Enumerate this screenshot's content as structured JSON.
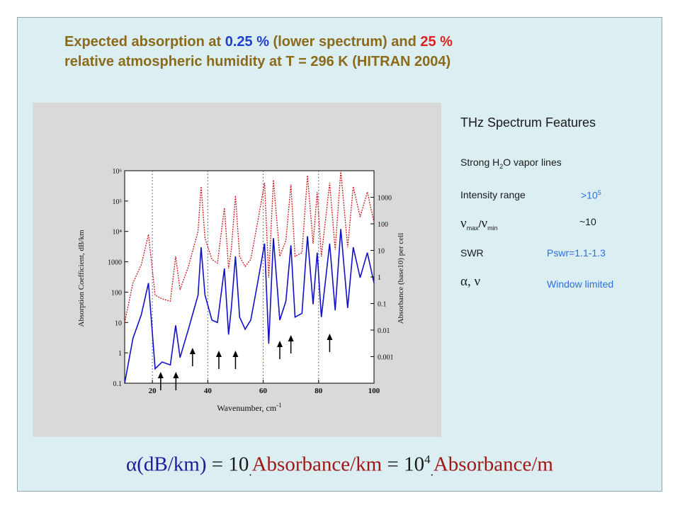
{
  "title": {
    "part1": "Expected absorption at ",
    "pct_low": "0.25 %",
    "part2": " (lower spectrum) and ",
    "pct_high": "25 %",
    "line2": "relative atmospheric humidity at T = 296 K (HITRAN 2004)"
  },
  "features": {
    "heading": "THz Spectrum Features",
    "strong_pre": "Strong H",
    "strong_sub": "2",
    "strong_post": "O vapor lines",
    "intensity_label": "Intensity range",
    "intensity_value": ">10",
    "intensity_exp": "5",
    "nu_max_sub": "max",
    "nu_min_sub": "min",
    "nu_value": "~10",
    "swr_label": "SWR",
    "swr_value": "Pswr=1.1-1.3",
    "alpha_nu": "α, ν",
    "alpha_value": "Window limited"
  },
  "formula": {
    "alpha": "α",
    "unit": "(dB/km)",
    "eq1": " = 10",
    "term1": "Absorbance/km",
    "eq2": " = 10",
    "exp": "4",
    "term2": "Absorbance/m"
  },
  "chart_data": {
    "type": "line",
    "xlabel": "Wavenumber, cm",
    "xlabel_sup": "-1",
    "ylabel_left": "Absorption Coefficient, dB/km",
    "ylabel_right": "Absorbance (base10) per cell",
    "xlim": [
      10,
      100
    ],
    "xticks": [
      20,
      40,
      60,
      80,
      100
    ],
    "ylim_left": [
      0.1,
      1000000
    ],
    "yticks_left": [
      "10⁶",
      "10⁵",
      "10⁴",
      "1000",
      "100",
      "10",
      "1",
      "0.1"
    ],
    "ylim_right": [
      0.0001,
      10000
    ],
    "yticks_right": [
      "1000",
      "100",
      "10",
      "1",
      "0.1",
      "0.01",
      "0.001"
    ],
    "grid": "dotted verticals at 20, 40, 60, 80",
    "colors": {
      "low": "#1010c8",
      "high": "#d01818",
      "arrow": "#000000"
    },
    "series": [
      {
        "humidity": "0.25 %",
        "style": "solid",
        "x": [
          10,
          13,
          16,
          18.6,
          21,
          23.5,
          26.5,
          28.4,
          30,
          33,
          36.5,
          37.6,
          39,
          41.5,
          43.5,
          46,
          47.5,
          48.5,
          50,
          51.5,
          53.5,
          55.5,
          58,
          60.5,
          62,
          63.7,
          66,
          68.2,
          70,
          71.5,
          74,
          76,
          78,
          79.5,
          81,
          84,
          86,
          88,
          90.5,
          92.5,
          95,
          97.6,
          100
        ],
        "y": [
          0.1,
          3,
          18,
          200,
          0.3,
          0.5,
          0.4,
          8,
          0.7,
          6,
          80,
          3000,
          80,
          12,
          10,
          600,
          4,
          30,
          1500,
          15,
          6,
          12,
          200,
          4000,
          2,
          6000,
          12,
          50,
          3500,
          15,
          20,
          7000,
          40,
          2000,
          15,
          4000,
          25,
          12000,
          30,
          3000,
          300,
          2000,
          200
        ]
      },
      {
        "humidity": "25 %",
        "style": "dotted",
        "x": [
          10,
          13,
          16,
          18.6,
          21,
          23.5,
          26.5,
          28.4,
          30,
          33,
          36.5,
          37.6,
          39,
          41.5,
          43.5,
          46,
          47.5,
          48.5,
          50,
          51.5,
          53.5,
          55.5,
          58,
          60.5,
          62,
          63.7,
          66,
          68.2,
          70,
          71.5,
          74,
          76,
          78,
          79.5,
          81,
          84,
          86,
          88,
          90.5,
          92.5,
          95,
          97.6,
          100
        ],
        "y": [
          10,
          200,
          800,
          8000,
          80,
          60,
          50,
          1500,
          120,
          700,
          10000,
          300000,
          6000,
          1200,
          900,
          60000,
          600,
          2500,
          150000,
          1500,
          700,
          1200,
          20000,
          400000,
          300,
          500000,
          1500,
          5000,
          350000,
          1500,
          2000,
          700000,
          4000,
          200000,
          1500,
          400000,
          2500,
          1000000,
          3000,
          300000,
          30000,
          200000,
          20000
        ]
      }
    ],
    "arrows_x": [
      23,
      28.5,
      34.5,
      44,
      50,
      66,
      70,
      84
    ]
  }
}
